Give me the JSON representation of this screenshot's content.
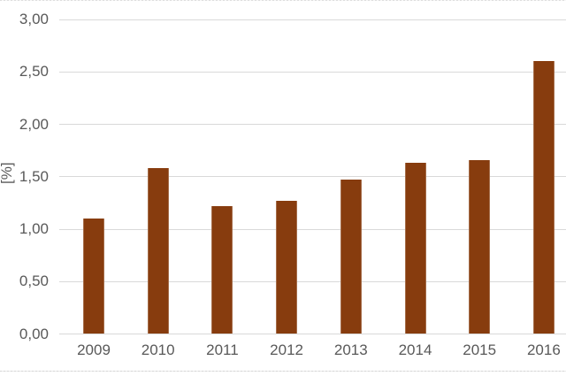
{
  "chart_data": {
    "type": "bar",
    "title": "",
    "xlabel": "",
    "ylabel": "[%]",
    "categories": [
      "2009",
      "2010",
      "2011",
      "2012",
      "2013",
      "2014",
      "2015",
      "2016"
    ],
    "values": [
      1.1,
      1.58,
      1.22,
      1.27,
      1.47,
      1.63,
      1.66,
      2.6
    ],
    "series_name": "",
    "ylim": [
      0,
      3
    ],
    "ytick_step": 0.5,
    "yticks": [
      {
        "value": 0.0,
        "label": "0,00"
      },
      {
        "value": 0.5,
        "label": "0,50"
      },
      {
        "value": 1.0,
        "label": "1,00"
      },
      {
        "value": 1.5,
        "label": "1,50"
      },
      {
        "value": 2.0,
        "label": "2,00"
      },
      {
        "value": 2.5,
        "label": "2,50"
      },
      {
        "value": 3.0,
        "label": "3,00"
      }
    ],
    "grid": true,
    "legend_position": "none",
    "colors": {
      "bar_fill": "#873C0E",
      "gridline": "#D9D9D9",
      "axis_text": "#595959",
      "background": "#FFFFFF"
    }
  }
}
